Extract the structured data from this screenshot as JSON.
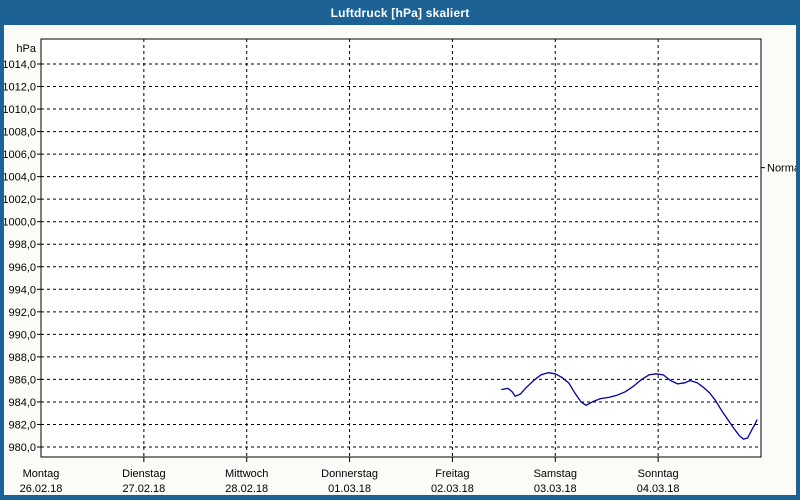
{
  "window": {
    "title": "Luftdruck [hPa] skaliert"
  },
  "colors": {
    "titlebar_bg": "#1d6295",
    "title_text": "#ffffff",
    "frame": "#1d6295",
    "page_bg": "#fbfcf8",
    "plot_bg": "#ffffff",
    "grid": "#000000",
    "axis": "#000000",
    "series_line": "#0000a0"
  },
  "chart_data": {
    "type": "line",
    "title": "Luftdruck [hPa] skaliert",
    "xlabel": "",
    "ylabel": "hPa",
    "legend": "none",
    "grid": "dashed, horizontal every 2 hPa, vertical at each day",
    "y_axis": {
      "unit_label": "hPa",
      "tick_min": 980,
      "tick_max": 1014,
      "tick_step": 2,
      "tick_label_style": "one decimal, German comma (e.g. 1014,0)"
    },
    "x_axis": {
      "range_days": [
        0,
        7
      ],
      "ticks": [
        {
          "day": "Montag",
          "date": "26.02.18"
        },
        {
          "day": "Dienstag",
          "date": "27.02.18"
        },
        {
          "day": "Mittwoch",
          "date": "28.02.18"
        },
        {
          "day": "Donnerstag",
          "date": "01.03.18"
        },
        {
          "day": "Freitag",
          "date": "02.03.18"
        },
        {
          "day": "Samstag",
          "date": "03.03.18"
        },
        {
          "day": "Sonntag",
          "date": "04.03.18"
        }
      ]
    },
    "annotations": [
      {
        "label": "Normal",
        "value_hpa": 1004.8,
        "side": "right"
      }
    ],
    "series": [
      {
        "name": "Luftdruck",
        "color": "#0000a0",
        "points_day_hpa": [
          [
            4.48,
            985.1
          ],
          [
            4.54,
            985.2
          ],
          [
            4.58,
            984.9
          ],
          [
            4.61,
            984.5
          ],
          [
            4.66,
            984.7
          ],
          [
            4.72,
            985.3
          ],
          [
            4.79,
            985.9
          ],
          [
            4.86,
            986.4
          ],
          [
            4.93,
            986.6
          ],
          [
            5.0,
            986.5
          ],
          [
            5.06,
            986.2
          ],
          [
            5.13,
            985.7
          ],
          [
            5.19,
            984.8
          ],
          [
            5.25,
            984.0
          ],
          [
            5.3,
            983.7
          ],
          [
            5.36,
            984.0
          ],
          [
            5.44,
            984.3
          ],
          [
            5.52,
            984.4
          ],
          [
            5.6,
            984.6
          ],
          [
            5.68,
            984.9
          ],
          [
            5.76,
            985.4
          ],
          [
            5.84,
            986.0
          ],
          [
            5.91,
            986.4
          ],
          [
            5.98,
            986.5
          ],
          [
            6.05,
            986.4
          ],
          [
            6.12,
            985.9
          ],
          [
            6.19,
            985.6
          ],
          [
            6.26,
            985.7
          ],
          [
            6.31,
            985.9
          ],
          [
            6.38,
            985.7
          ],
          [
            6.44,
            985.3
          ],
          [
            6.5,
            984.8
          ],
          [
            6.56,
            984.1
          ],
          [
            6.62,
            983.2
          ],
          [
            6.68,
            982.4
          ],
          [
            6.74,
            981.6
          ],
          [
            6.79,
            981.0
          ],
          [
            6.83,
            980.7
          ],
          [
            6.87,
            980.8
          ],
          [
            6.91,
            981.5
          ],
          [
            6.94,
            982.0
          ],
          [
            6.96,
            982.4
          ]
        ]
      }
    ]
  }
}
